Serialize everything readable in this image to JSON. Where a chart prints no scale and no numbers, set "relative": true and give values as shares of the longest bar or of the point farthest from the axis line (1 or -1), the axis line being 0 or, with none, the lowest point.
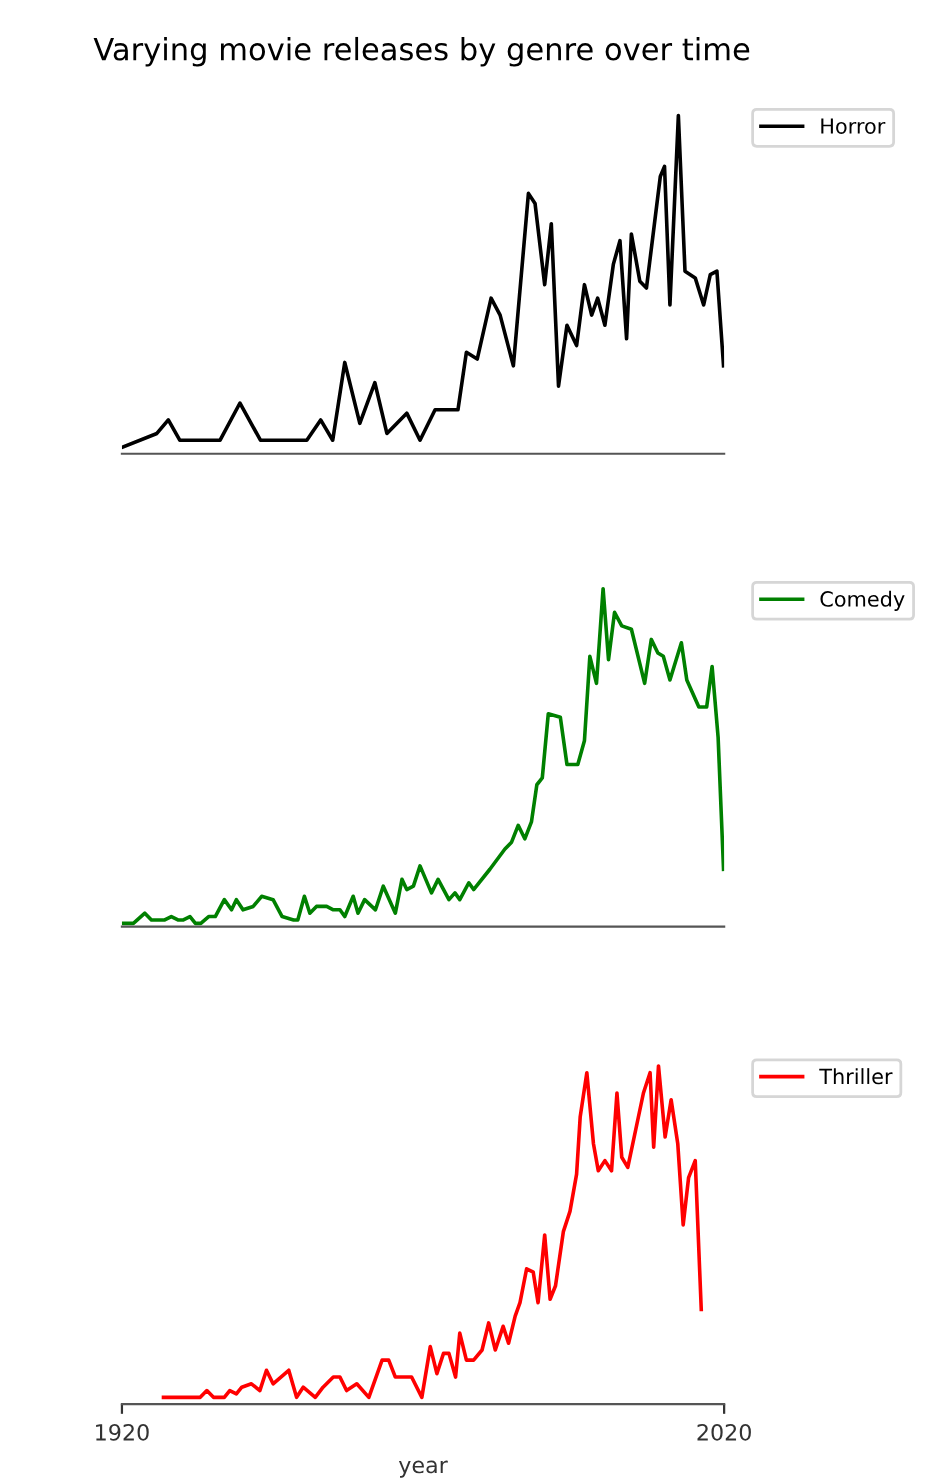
{
  "chart_data": [
    {
      "type": "line",
      "title": "Varying movie releases by genre over time",
      "relative": true,
      "xlim": [
        1920,
        2020
      ],
      "tick_labels": false,
      "legend": "top right",
      "grid": false,
      "series": [
        {
          "name": "Horror",
          "color": "#000000",
          "x": [
            1920.2,
            1925.8,
            1927.7,
            1929.6,
            1936.3,
            1939.6,
            1943,
            1950.7,
            1953,
            1955,
            1957,
            1959.5,
            1962,
            1964,
            1967.3,
            1969.5,
            1972,
            1975.8,
            1977.2,
            1979,
            1981.3,
            1982.8,
            1985,
            1987.5,
            1988.6,
            1990.2,
            1991.3,
            1992.5,
            1993.9,
            1995.5,
            1996.8,
            1998,
            1999,
            2000.2,
            2001.6,
            2002.7,
            2003.8,
            2004.6,
            2006,
            2007.1,
            2009.4,
            2010.1,
            2011,
            2012.4,
            2013.5,
            2015.2,
            2016.6,
            2017.7,
            2018.8,
            2019.9
          ],
          "values": [
            0.02,
            0.06,
            0.1,
            0.04,
            0.04,
            0.15,
            0.04,
            0.04,
            0.1,
            0.04,
            0.27,
            0.09,
            0.21,
            0.06,
            0.12,
            0.04,
            0.13,
            0.13,
            0.3,
            0.28,
            0.46,
            0.41,
            0.26,
            0.77,
            0.74,
            0.5,
            0.68,
            0.2,
            0.38,
            0.32,
            0.5,
            0.41,
            0.46,
            0.38,
            0.56,
            0.63,
            0.34,
            0.65,
            0.51,
            0.49,
            0.82,
            0.85,
            0.44,
            1.0,
            0.54,
            0.52,
            0.44,
            0.53,
            0.54,
            0.26
          ]
        }
      ]
    },
    {
      "type": "line",
      "relative": true,
      "xlim": [
        1920,
        2020
      ],
      "tick_labels": false,
      "legend": "top right",
      "grid": false,
      "series": [
        {
          "name": "Comedy",
          "color": "#008000",
          "x": [
            1920.2,
            1921.9,
            1923.8,
            1924.9,
            1926,
            1927.1,
            1928.2,
            1929.3,
            1930.2,
            1931.3,
            1932.2,
            1933.1,
            1934.4,
            1935.5,
            1937,
            1938.2,
            1939,
            1940.1,
            1941.8,
            1943.2,
            1945.1,
            1946.6,
            1948.5,
            1949.2,
            1950.3,
            1951.2,
            1952.3,
            1954,
            1955.1,
            1956.2,
            1957,
            1958.4,
            1959.2,
            1960.3,
            1962.1,
            1963.4,
            1965.4,
            1966.5,
            1967.3,
            1968.4,
            1969.5,
            1971.4,
            1972.5,
            1974.3,
            1975.3,
            1976.1,
            1977.6,
            1978.4,
            1981.1,
            1983.6,
            1984.7,
            1985.8,
            1986.9,
            1988,
            1988.9,
            1989.8,
            1990.8,
            1992.8,
            1993.9,
            1995.7,
            1996.8,
            1997.7,
            1998.8,
            1999.9,
            2000.8,
            2001.8,
            2003,
            2004.6,
            2006.8,
            2007.9,
            2009,
            2009.9,
            2011,
            2012.9,
            2013.8,
            2015.8,
            2017.1,
            2018,
            2019,
            2019.9
          ],
          "values": [
            0.01,
            0.01,
            0.04,
            0.02,
            0.02,
            0.02,
            0.03,
            0.02,
            0.02,
            0.03,
            0.01,
            0.01,
            0.03,
            0.03,
            0.08,
            0.05,
            0.08,
            0.05,
            0.06,
            0.09,
            0.08,
            0.03,
            0.02,
            0.02,
            0.09,
            0.04,
            0.06,
            0.06,
            0.05,
            0.05,
            0.03,
            0.09,
            0.04,
            0.08,
            0.05,
            0.12,
            0.04,
            0.14,
            0.11,
            0.12,
            0.18,
            0.1,
            0.14,
            0.08,
            0.1,
            0.08,
            0.13,
            0.11,
            0.17,
            0.23,
            0.25,
            0.3,
            0.26,
            0.31,
            0.42,
            0.44,
            0.63,
            0.62,
            0.48,
            0.48,
            0.55,
            0.8,
            0.72,
            1.0,
            0.79,
            0.93,
            0.89,
            0.88,
            0.72,
            0.85,
            0.81,
            0.8,
            0.73,
            0.84,
            0.73,
            0.65,
            0.65,
            0.77,
            0.56,
            0.17
          ]
        }
      ]
    },
    {
      "type": "line",
      "relative": true,
      "xlabel": "year",
      "xlim": [
        1920,
        2020
      ],
      "xticks": [
        1920,
        2020
      ],
      "tick_labels": "x",
      "legend": "top right",
      "grid": false,
      "series": [
        {
          "name": "Thriller",
          "color": "#ff0000",
          "x": [
            1926.9,
            1933,
            1934.1,
            1935.2,
            1937,
            1937.9,
            1939,
            1939.9,
            1941.5,
            1942.9,
            1944,
            1945.1,
            1947.7,
            1949,
            1950.1,
            1952.1,
            1953.4,
            1955.1,
            1956.2,
            1957.3,
            1959,
            1961,
            1963.2,
            1964.3,
            1965.4,
            1968.1,
            1969.8,
            1971.2,
            1972.3,
            1973.4,
            1974.3,
            1975.4,
            1976.1,
            1977.2,
            1978.4,
            1979.8,
            1980.9,
            1982,
            1983.3,
            1984.2,
            1985.3,
            1986.1,
            1987.2,
            1988.3,
            1989.1,
            1990.2,
            1991.1,
            1992,
            1993.3,
            1994.4,
            1995.5,
            1996.1,
            1997.2,
            1998.3,
            1999.1,
            2000.2,
            2001.3,
            2002.2,
            2003,
            2004,
            2006.6,
            2007.7,
            2008.3,
            2009.1,
            2010.2,
            2011.2,
            2012.3,
            2013.2,
            2014.1,
            2015.2,
            2016.2
          ],
          "values": [
            0.02,
            0.02,
            0.04,
            0.02,
            0.02,
            0.04,
            0.03,
            0.05,
            0.06,
            0.04,
            0.1,
            0.06,
            0.1,
            0.02,
            0.05,
            0.02,
            0.05,
            0.08,
            0.08,
            0.04,
            0.06,
            0.02,
            0.13,
            0.13,
            0.08,
            0.08,
            0.02,
            0.17,
            0.09,
            0.15,
            0.15,
            0.08,
            0.21,
            0.13,
            0.13,
            0.16,
            0.24,
            0.16,
            0.23,
            0.18,
            0.26,
            0.3,
            0.4,
            0.39,
            0.3,
            0.5,
            0.31,
            0.35,
            0.51,
            0.57,
            0.68,
            0.85,
            0.98,
            0.77,
            0.69,
            0.72,
            0.69,
            0.92,
            0.73,
            0.7,
            0.92,
            0.98,
            0.76,
            1.0,
            0.79,
            0.9,
            0.77,
            0.53,
            0.67,
            0.72,
            0.28
          ]
        }
      ]
    }
  ]
}
